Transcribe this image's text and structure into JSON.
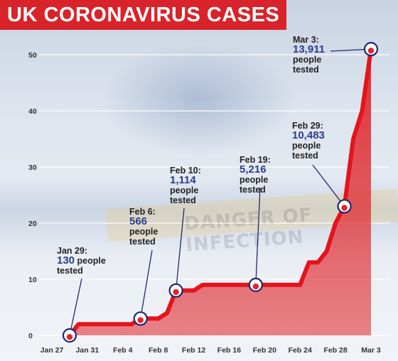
{
  "title": "UK CORONAVIRUS CASES",
  "colors": {
    "accent": "#d9232a",
    "line": "#e02020",
    "area": "#e0262b",
    "marker_ring": "#1f2a6a",
    "number": "#2a3e8a"
  },
  "background_watermark": "DANGER OF INFECTION",
  "chart_data": {
    "type": "area",
    "title": "UK CORONAVIRUS CASES",
    "xlabel": "",
    "ylabel": "",
    "ylim": [
      0,
      52
    ],
    "y_ticks": [
      0,
      10,
      20,
      30,
      40,
      50
    ],
    "x_tick_labels": [
      "Jan 27",
      "Jan 31",
      "Feb 4",
      "Feb 8",
      "Feb 12",
      "Feb 16",
      "Feb 20",
      "Feb 24",
      "Feb 28",
      "Mar 3"
    ],
    "x_ticks": [
      "2020-01-27",
      "2020-01-31",
      "2020-02-04",
      "2020-02-08",
      "2020-02-12",
      "2020-02-16",
      "2020-02-20",
      "2020-02-24",
      "2020-02-28",
      "2020-03-03"
    ],
    "grid": true,
    "series": [
      {
        "x": [
          "2020-01-29",
          "2020-01-30",
          "2020-01-31",
          "2020-02-01",
          "2020-02-02",
          "2020-02-03",
          "2020-02-04",
          "2020-02-05",
          "2020-02-06",
          "2020-02-07",
          "2020-02-08",
          "2020-02-09",
          "2020-02-10",
          "2020-02-11",
          "2020-02-12",
          "2020-02-13",
          "2020-02-14",
          "2020-02-15",
          "2020-02-16",
          "2020-02-17",
          "2020-02-18",
          "2020-02-19",
          "2020-02-20",
          "2020-02-21",
          "2020-02-22",
          "2020-02-23",
          "2020-02-24",
          "2020-02-25",
          "2020-02-26",
          "2020-02-27",
          "2020-02-28",
          "2020-02-29",
          "2020-03-01",
          "2020-03-02",
          "2020-03-03"
        ],
        "values": [
          0,
          2,
          2,
          2,
          2,
          2,
          2,
          2,
          3,
          3,
          3,
          4,
          8,
          8,
          8,
          9,
          9,
          9,
          9,
          9,
          9,
          9,
          9,
          9,
          9,
          9,
          9,
          13,
          13,
          15,
          20,
          23,
          35,
          40,
          51
        ]
      }
    ],
    "annotations": [
      {
        "date": "Jan 29:",
        "number": "130",
        "text": "people tested",
        "x": "2020-01-29",
        "y": 0
      },
      {
        "date": "Feb 6:",
        "number": "566",
        "text": "people tested",
        "x": "2020-02-06",
        "y": 3
      },
      {
        "date": "Feb 10:",
        "number": "1,114",
        "text": "people tested",
        "x": "2020-02-10",
        "y": 8
      },
      {
        "date": "Feb 19:",
        "number": "5,216",
        "text": "people tested",
        "x": "2020-02-19",
        "y": 9
      },
      {
        "date": "Feb 29:",
        "number": "10,483",
        "text": "people tested",
        "x": "2020-02-29",
        "y": 23
      },
      {
        "date": "Mar 3:",
        "number": "13,911",
        "text": "people tested",
        "x": "2020-03-03",
        "y": 51
      }
    ]
  }
}
